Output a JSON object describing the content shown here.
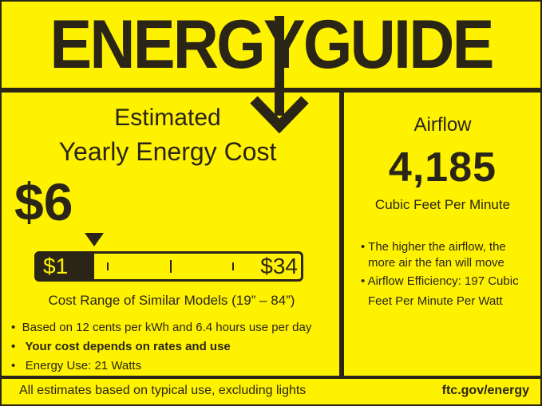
{
  "header": {
    "title": "ENERGYGUIDE"
  },
  "cost": {
    "label_line1": "Estimated",
    "label_line2": "Yearly Energy Cost",
    "value": "$6",
    "range": {
      "min_label": "$1",
      "max_label": "$34",
      "min": 1,
      "max": 34,
      "marker": 6
    },
    "range_caption": "Cost Range of Similar Models (19” – 84”)",
    "bullets": [
      "Based on 12 cents per kWh and 6.4 hours use per day",
      "Your cost depends on rates and use",
      "Energy Use: 21 Watts"
    ]
  },
  "airflow": {
    "label": "Airflow",
    "value": "4,185",
    "unit": "Cubic Feet Per Minute",
    "notes": [
      "The higher the airflow, the",
      "more air the fan will move",
      "Airflow Efficiency: 197 Cubic",
      "Feet Per Minute Per Watt"
    ]
  },
  "footer": {
    "disclaimer": "All estimates based on typical use, excluding lights",
    "link": "ftc.gov/energy"
  },
  "colors": {
    "background": "#fff200",
    "ink": "#2a2516"
  }
}
